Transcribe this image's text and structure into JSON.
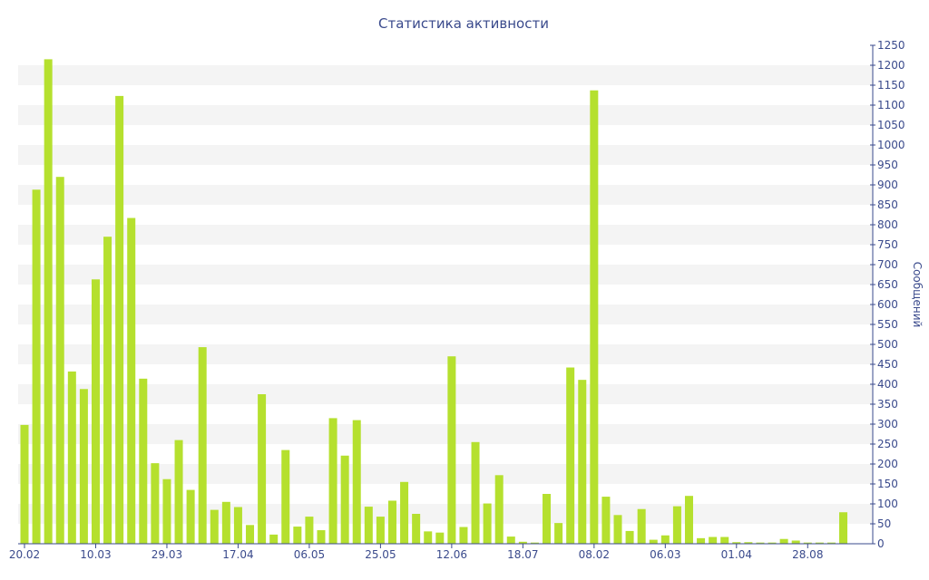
{
  "chart_data": {
    "type": "bar",
    "title": "Статистика активности",
    "xlabel": "",
    "ylabel": "Сообщений",
    "ylim": [
      0,
      1250
    ],
    "y_ticks": [
      0,
      50,
      100,
      150,
      200,
      250,
      300,
      350,
      400,
      450,
      500,
      550,
      600,
      650,
      700,
      750,
      800,
      850,
      900,
      950,
      1000,
      1050,
      1100,
      1150,
      1200,
      1250
    ],
    "x_tick_labels": [
      "20.02",
      "10.03",
      "29.03",
      "17.04",
      "06.05",
      "25.05",
      "12.06",
      "18.07",
      "08.02",
      "06.03",
      "01.04",
      "28.08"
    ],
    "y_axis_position": "right",
    "grid": "alternating-horizontal-bands",
    "bar_color": "#b5e02e",
    "values": [
      298,
      888,
      1215,
      920,
      432,
      388,
      663,
      770,
      1123,
      817,
      414,
      202,
      162,
      260,
      135,
      493,
      85,
      105,
      92,
      47,
      375,
      23,
      235,
      43,
      68,
      34,
      315,
      221,
      310,
      93,
      68,
      108,
      155,
      75,
      31,
      28,
      470,
      42,
      255,
      101,
      172,
      18,
      5,
      3,
      125,
      52,
      442,
      411,
      1137,
      118,
      72,
      32,
      87,
      10,
      21,
      94,
      120,
      14,
      17,
      17,
      4,
      4,
      3,
      3,
      12,
      8,
      3,
      3,
      3,
      79
    ],
    "tick_bar_indices": [
      0,
      6,
      12,
      18,
      24,
      30,
      36,
      42,
      48,
      54,
      60,
      66
    ]
  }
}
